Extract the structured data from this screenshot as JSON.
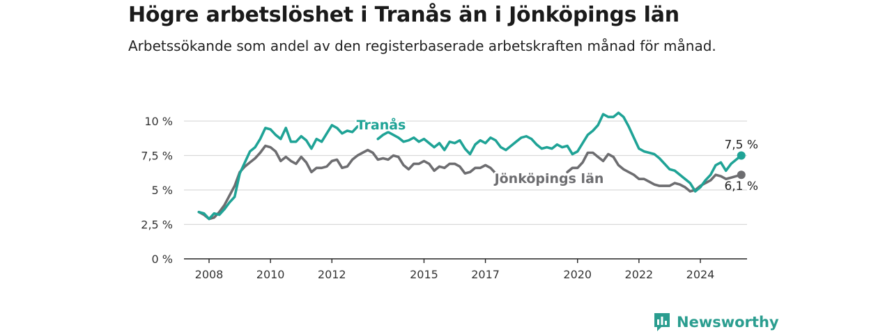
{
  "title": "Högre arbetslöshet i Tranås än i Jönköpings län",
  "subtitle": "Arbetssökande som andel av den registerbaserade arbetskraften månad för månad.",
  "brand": {
    "name": "Newsworthy",
    "icon": "newsworthy-logo-icon",
    "color": "#2a9d8f"
  },
  "chart_data": {
    "type": "line",
    "title": "Högre arbetslöshet i Tranås än i Jönköpings län",
    "subtitle": "Arbetssökande som andel av den registerbaserade arbetskraften månad för månad.",
    "xlabel": "",
    "ylabel": "",
    "x_ticks": [
      "2008",
      "2010",
      "2012",
      "2015",
      "2017",
      "2020",
      "2022",
      "2024"
    ],
    "y_ticks": [
      "0 %",
      "2,5 %",
      "5 %",
      "7,5 %",
      "10 %"
    ],
    "ylim": [
      0,
      10.5
    ],
    "grid": "horizontal",
    "legend": "direct labels",
    "series": [
      {
        "name": "Tranås",
        "color": "#1fa396",
        "end_label": "7,5 %",
        "points": [
          [
            "2007-09",
            3.4
          ],
          [
            "2007-11",
            3.3
          ],
          [
            "2008-01",
            2.9
          ],
          [
            "2008-03",
            3.3
          ],
          [
            "2008-05",
            3.2
          ],
          [
            "2008-07",
            3.6
          ],
          [
            "2008-09",
            4.1
          ],
          [
            "2008-11",
            4.5
          ],
          [
            "2009-01",
            6.2
          ],
          [
            "2009-03",
            7.0
          ],
          [
            "2009-05",
            7.8
          ],
          [
            "2009-07",
            8.1
          ],
          [
            "2009-09",
            8.7
          ],
          [
            "2009-11",
            9.5
          ],
          [
            "2010-01",
            9.4
          ],
          [
            "2010-03",
            9.0
          ],
          [
            "2010-05",
            8.7
          ],
          [
            "2010-07",
            9.5
          ],
          [
            "2010-09",
            8.5
          ],
          [
            "2010-11",
            8.5
          ],
          [
            "2011-01",
            8.9
          ],
          [
            "2011-03",
            8.6
          ],
          [
            "2011-05",
            8.0
          ],
          [
            "2011-07",
            8.7
          ],
          [
            "2011-09",
            8.5
          ],
          [
            "2011-11",
            9.1
          ],
          [
            "2012-01",
            9.7
          ],
          [
            "2012-03",
            9.5
          ],
          [
            "2012-05",
            9.1
          ],
          [
            "2012-07",
            9.3
          ],
          [
            "2012-09",
            9.2
          ],
          [
            "2012-11",
            9.6
          ],
          [
            "2013-01",
            9.7
          ],
          [
            "2013-06",
            null
          ],
          [
            "2013-07",
            8.7
          ],
          [
            "2013-09",
            9.0
          ],
          [
            "2013-11",
            9.2
          ],
          [
            "2014-01",
            9.0
          ],
          [
            "2014-03",
            8.8
          ],
          [
            "2014-05",
            8.5
          ],
          [
            "2014-07",
            8.6
          ],
          [
            "2014-09",
            8.8
          ],
          [
            "2014-11",
            8.5
          ],
          [
            "2015-01",
            8.7
          ],
          [
            "2015-03",
            8.4
          ],
          [
            "2015-05",
            8.1
          ],
          [
            "2015-07",
            8.4
          ],
          [
            "2015-09",
            7.9
          ],
          [
            "2015-11",
            8.5
          ],
          [
            "2016-01",
            8.4
          ],
          [
            "2016-03",
            8.6
          ],
          [
            "2016-05",
            8.0
          ],
          [
            "2016-07",
            7.6
          ],
          [
            "2016-09",
            8.3
          ],
          [
            "2016-11",
            8.6
          ],
          [
            "2017-01",
            8.4
          ],
          [
            "2017-03",
            8.8
          ],
          [
            "2017-05",
            8.6
          ],
          [
            "2017-07",
            8.1
          ],
          [
            "2017-09",
            7.9
          ],
          [
            "2017-11",
            8.2
          ],
          [
            "2018-01",
            8.5
          ],
          [
            "2018-03",
            8.8
          ],
          [
            "2018-05",
            8.9
          ],
          [
            "2018-07",
            8.7
          ],
          [
            "2018-09",
            8.3
          ],
          [
            "2018-11",
            8.0
          ],
          [
            "2019-01",
            8.1
          ],
          [
            "2019-03",
            8.0
          ],
          [
            "2019-05",
            8.3
          ],
          [
            "2019-07",
            8.1
          ],
          [
            "2019-09",
            8.2
          ],
          [
            "2019-11",
            7.6
          ],
          [
            "2020-01",
            7.8
          ],
          [
            "2020-03",
            8.4
          ],
          [
            "2020-05",
            9.0
          ],
          [
            "2020-07",
            9.3
          ],
          [
            "2020-09",
            9.7
          ],
          [
            "2020-11",
            10.5
          ],
          [
            "2021-01",
            10.3
          ],
          [
            "2021-03",
            10.3
          ],
          [
            "2021-05",
            10.6
          ],
          [
            "2021-07",
            10.3
          ],
          [
            "2021-09",
            9.6
          ],
          [
            "2021-11",
            8.8
          ],
          [
            "2022-01",
            8.0
          ],
          [
            "2022-03",
            7.8
          ],
          [
            "2022-05",
            7.7
          ],
          [
            "2022-07",
            7.6
          ],
          [
            "2022-09",
            7.3
          ],
          [
            "2022-11",
            6.9
          ],
          [
            "2023-01",
            6.5
          ],
          [
            "2023-03",
            6.4
          ],
          [
            "2023-05",
            6.1
          ],
          [
            "2023-07",
            5.8
          ],
          [
            "2023-09",
            5.5
          ],
          [
            "2023-11",
            4.9
          ],
          [
            "2024-01",
            5.2
          ],
          [
            "2024-03",
            5.7
          ],
          [
            "2024-05",
            6.1
          ],
          [
            "2024-07",
            6.8
          ],
          [
            "2024-09",
            7.0
          ],
          [
            "2024-11",
            6.4
          ],
          [
            "2025-01",
            6.9
          ],
          [
            "2025-03",
            7.2
          ],
          [
            "2025-05",
            7.5
          ]
        ]
      },
      {
        "name": "Jönköpings län",
        "color": "#6d6d70",
        "end_label": "6,1 %",
        "points": [
          [
            "2007-09",
            3.4
          ],
          [
            "2007-11",
            3.2
          ],
          [
            "2008-01",
            2.9
          ],
          [
            "2008-03",
            3.0
          ],
          [
            "2008-05",
            3.4
          ],
          [
            "2008-07",
            3.9
          ],
          [
            "2008-09",
            4.6
          ],
          [
            "2008-11",
            5.3
          ],
          [
            "2009-01",
            6.3
          ],
          [
            "2009-03",
            6.7
          ],
          [
            "2009-05",
            7.0
          ],
          [
            "2009-07",
            7.3
          ],
          [
            "2009-09",
            7.7
          ],
          [
            "2009-11",
            8.2
          ],
          [
            "2010-01",
            8.1
          ],
          [
            "2010-03",
            7.8
          ],
          [
            "2010-05",
            7.1
          ],
          [
            "2010-07",
            7.4
          ],
          [
            "2010-09",
            7.1
          ],
          [
            "2010-11",
            6.9
          ],
          [
            "2011-01",
            7.4
          ],
          [
            "2011-03",
            7.0
          ],
          [
            "2011-05",
            6.3
          ],
          [
            "2011-07",
            6.6
          ],
          [
            "2011-09",
            6.6
          ],
          [
            "2011-11",
            6.7
          ],
          [
            "2012-01",
            7.1
          ],
          [
            "2012-03",
            7.2
          ],
          [
            "2012-05",
            6.6
          ],
          [
            "2012-07",
            6.7
          ],
          [
            "2012-09",
            7.2
          ],
          [
            "2012-11",
            7.5
          ],
          [
            "2013-01",
            7.7
          ],
          [
            "2013-03",
            7.9
          ],
          [
            "2013-05",
            7.7
          ],
          [
            "2013-07",
            7.2
          ],
          [
            "2013-09",
            7.3
          ],
          [
            "2013-11",
            7.2
          ],
          [
            "2014-01",
            7.5
          ],
          [
            "2014-03",
            7.4
          ],
          [
            "2014-05",
            6.8
          ],
          [
            "2014-07",
            6.5
          ],
          [
            "2014-09",
            6.9
          ],
          [
            "2014-11",
            6.9
          ],
          [
            "2015-01",
            7.1
          ],
          [
            "2015-03",
            6.9
          ],
          [
            "2015-05",
            6.4
          ],
          [
            "2015-07",
            6.7
          ],
          [
            "2015-09",
            6.6
          ],
          [
            "2015-11",
            6.9
          ],
          [
            "2016-01",
            6.9
          ],
          [
            "2016-03",
            6.7
          ],
          [
            "2016-05",
            6.2
          ],
          [
            "2016-07",
            6.3
          ],
          [
            "2016-09",
            6.6
          ],
          [
            "2016-11",
            6.6
          ],
          [
            "2017-01",
            6.8
          ],
          [
            "2017-03",
            6.6
          ],
          [
            "2017-05",
            6.2
          ],
          [
            "2017-06",
            null
          ],
          [
            "2019-09",
            6.3
          ],
          [
            "2019-11",
            6.6
          ],
          [
            "2020-01",
            6.6
          ],
          [
            "2020-03",
            7.0
          ],
          [
            "2020-05",
            7.7
          ],
          [
            "2020-07",
            7.7
          ],
          [
            "2020-09",
            7.4
          ],
          [
            "2020-11",
            7.1
          ],
          [
            "2021-01",
            7.6
          ],
          [
            "2021-03",
            7.4
          ],
          [
            "2021-05",
            6.8
          ],
          [
            "2021-07",
            6.5
          ],
          [
            "2021-09",
            6.3
          ],
          [
            "2021-11",
            6.1
          ],
          [
            "2022-01",
            5.8
          ],
          [
            "2022-03",
            5.8
          ],
          [
            "2022-05",
            5.6
          ],
          [
            "2022-07",
            5.4
          ],
          [
            "2022-09",
            5.3
          ],
          [
            "2022-11",
            5.3
          ],
          [
            "2023-01",
            5.3
          ],
          [
            "2023-03",
            5.5
          ],
          [
            "2023-05",
            5.4
          ],
          [
            "2023-07",
            5.2
          ],
          [
            "2023-09",
            4.9
          ],
          [
            "2023-11",
            5.0
          ],
          [
            "2024-01",
            5.3
          ],
          [
            "2024-03",
            5.5
          ],
          [
            "2024-05",
            5.7
          ],
          [
            "2024-07",
            6.1
          ],
          [
            "2024-09",
            6.0
          ],
          [
            "2024-11",
            5.8
          ],
          [
            "2025-01",
            5.9
          ],
          [
            "2025-03",
            6.0
          ],
          [
            "2025-05",
            6.1
          ]
        ]
      }
    ]
  }
}
